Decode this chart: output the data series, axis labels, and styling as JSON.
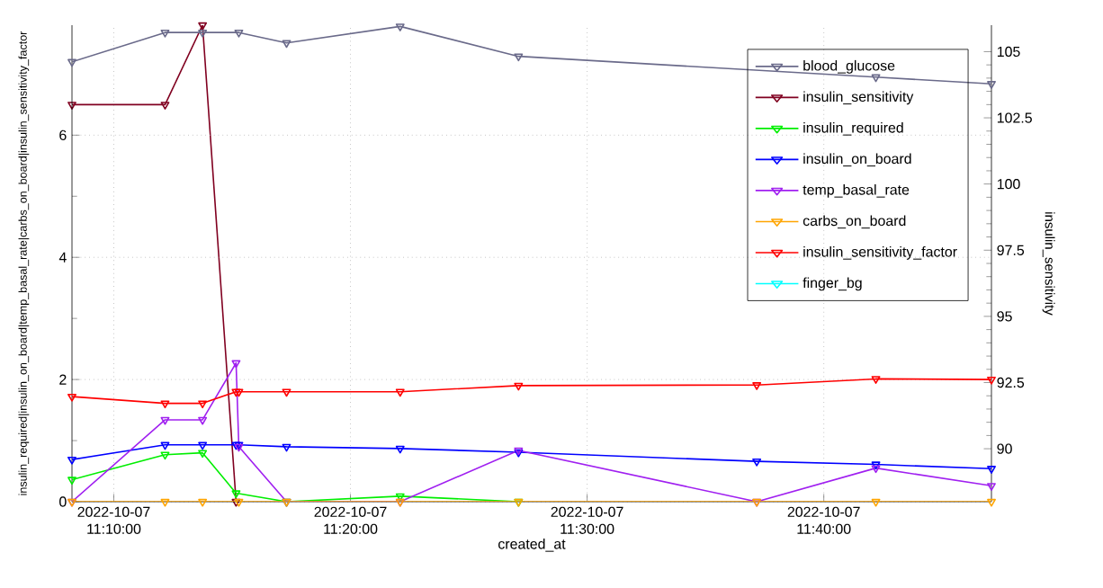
{
  "chart_data": {
    "type": "line",
    "xlabel": "created_at",
    "ylabel": "insulin_required|insulin_on_board|temp_basal_rate|carbs_on_board|insulin_sensitivity_factor",
    "y2label": "insulin_sensitivity",
    "xlim": [
      "2022-10-07T11:08:14",
      "2022-10-07T11:47:05"
    ],
    "xticks": [
      {
        "value": "2022-10-07T11:10",
        "label": "2022-10-07 11:10:00"
      },
      {
        "value": "2022-10-07T11:20",
        "label": "2022-10-07 11:20:00"
      },
      {
        "value": "2022-10-07T11:30",
        "label": "2022-10-07 11:30:00"
      },
      {
        "value": "2022-10-07T11:40",
        "label": "2022-10-07 11:40:00"
      }
    ],
    "ylim": [
      0,
      7.8
    ],
    "yticks": [
      0,
      2,
      4,
      6
    ],
    "y2lim": [
      88,
      106
    ],
    "y2ticks": [
      90,
      92.5,
      95,
      97.5,
      100,
      102.5,
      105
    ],
    "grid": true,
    "legend": "top right",
    "marker": "triangle",
    "line_style": "solid",
    "series": [
      {
        "name": "blood_glucose",
        "color": "#6a6a8a",
        "x": [
          "2022-10-07T11:08:14",
          "2022-10-07T11:12:10",
          "2022-10-07T11:13:45",
          "2022-10-07T11:15:17",
          "2022-10-07T11:17:18",
          "2022-10-07T11:22:06",
          "2022-10-07T11:27:06",
          "2022-10-07T11:42:12",
          "2022-10-07T11:47:05"
        ],
        "values": [
          7.2,
          7.68,
          7.68,
          7.68,
          7.51,
          7.78,
          7.29,
          6.95,
          6.84
        ]
      },
      {
        "name": "insulin_sensitivity",
        "color": "#800020",
        "axis": "y2",
        "x": [
          "2022-10-07T11:08:14",
          "2022-10-07T11:12:10",
          "2022-10-07T11:13:45",
          "2022-10-07T11:15:10"
        ],
        "values": [
          103,
          103,
          106,
          88
        ]
      },
      {
        "name": "insulin_required",
        "color": "#00ee00",
        "x": [
          "2022-10-07T11:08:14",
          "2022-10-07T11:12:10",
          "2022-10-07T11:13:45",
          "2022-10-07T11:15:10",
          "2022-10-07T11:17:18",
          "2022-10-07T11:22:06",
          "2022-10-07T11:27:06"
        ],
        "values": [
          0.36,
          0.77,
          0.8,
          0.14,
          0,
          0.09,
          0
        ]
      },
      {
        "name": "insulin_on_board",
        "color": "#0000ff",
        "x": [
          "2022-10-07T11:08:14",
          "2022-10-07T11:12:10",
          "2022-10-07T11:13:45",
          "2022-10-07T11:15:10",
          "2022-10-07T11:15:17",
          "2022-10-07T11:17:18",
          "2022-10-07T11:22:06",
          "2022-10-07T11:27:06",
          "2022-10-07T11:37:10",
          "2022-10-07T11:42:12",
          "2022-10-07T11:47:05"
        ],
        "values": [
          0.69,
          0.93,
          0.93,
          0.93,
          0.93,
          0.9,
          0.87,
          0.81,
          0.66,
          0.61,
          0.54
        ]
      },
      {
        "name": "temp_basal_rate",
        "color": "#a020f0",
        "x": [
          "2022-10-07T11:08:14",
          "2022-10-07T11:12:10",
          "2022-10-07T11:13:45",
          "2022-10-07T11:15:10",
          "2022-10-07T11:15:17",
          "2022-10-07T11:17:18",
          "2022-10-07T11:22:06",
          "2022-10-07T11:27:06",
          "2022-10-07T11:37:10",
          "2022-10-07T11:42:12",
          "2022-10-07T11:47:05"
        ],
        "values": [
          0,
          1.34,
          1.34,
          2.27,
          0.9,
          0,
          0,
          0.84,
          0,
          0.55,
          0.26
        ]
      },
      {
        "name": "carbs_on_board",
        "color": "#ffa500",
        "x": [
          "2022-10-07T11:08:14",
          "2022-10-07T11:12:10",
          "2022-10-07T11:13:45",
          "2022-10-07T11:15:17",
          "2022-10-07T11:17:18",
          "2022-10-07T11:22:06",
          "2022-10-07T11:27:06",
          "2022-10-07T11:37:10",
          "2022-10-07T11:42:12",
          "2022-10-07T11:47:05"
        ],
        "values": [
          0,
          0,
          0,
          0,
          0,
          0,
          0,
          0,
          0,
          0
        ]
      },
      {
        "name": "insulin_sensitivity_factor",
        "color": "#ff0000",
        "x": [
          "2022-10-07T11:08:14",
          "2022-10-07T11:12:10",
          "2022-10-07T11:13:45",
          "2022-10-07T11:15:10",
          "2022-10-07T11:15:17",
          "2022-10-07T11:17:18",
          "2022-10-07T11:22:06",
          "2022-10-07T11:27:06",
          "2022-10-07T11:37:10",
          "2022-10-07T11:42:12",
          "2022-10-07T11:47:05"
        ],
        "values": [
          1.72,
          1.61,
          1.61,
          1.8,
          1.8,
          1.8,
          1.8,
          1.9,
          1.91,
          2.01,
          2.0
        ]
      },
      {
        "name": "finger_bg",
        "color": "#00ffff"
      }
    ]
  }
}
